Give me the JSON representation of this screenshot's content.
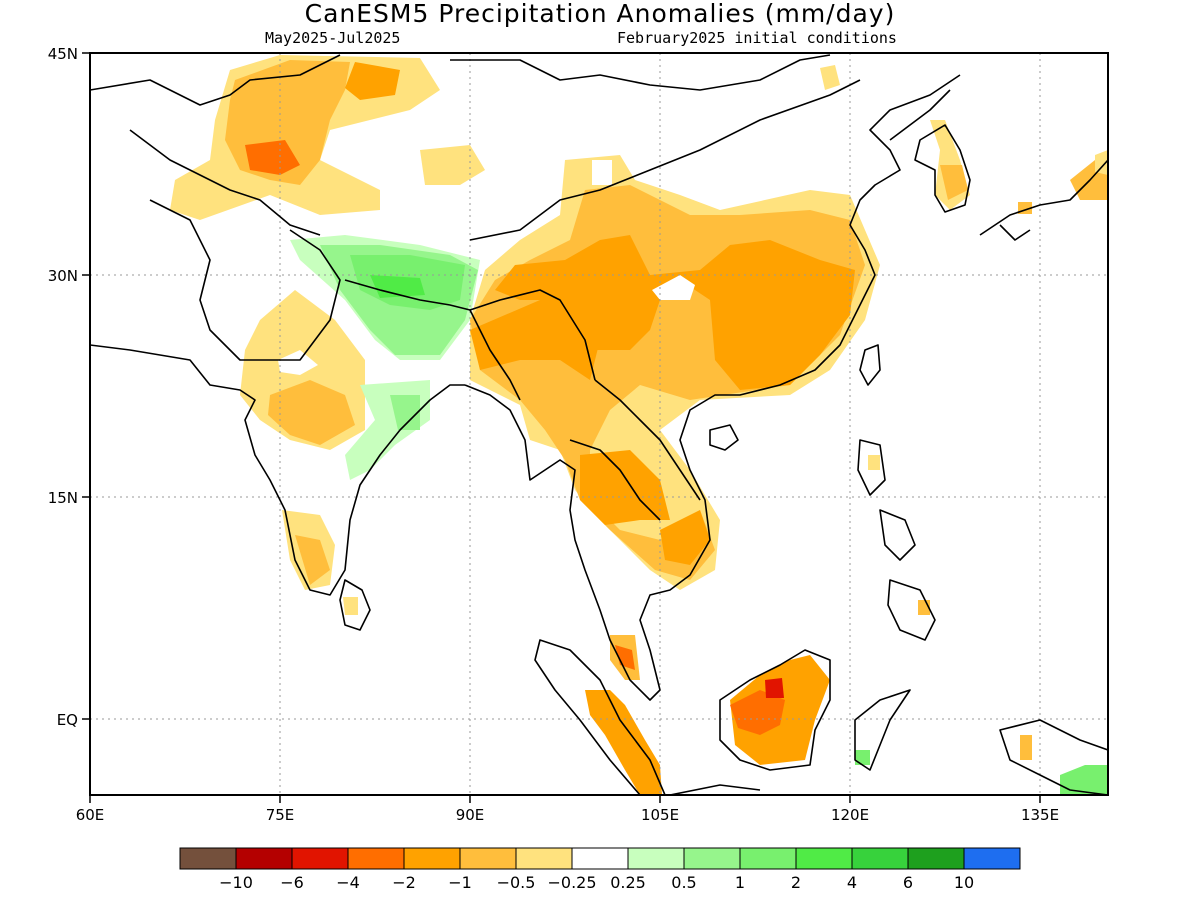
{
  "title": "CanESM5 Precipitation Anomalies (mm/day)",
  "period": "May2025-Jul2025",
  "init": "February2025 initial conditions",
  "map": {
    "lon_range": [
      60,
      140
    ],
    "lat_range": [
      -5,
      45
    ],
    "lon_ticks": [
      "60E",
      "75E",
      "90E",
      "105E",
      "120E",
      "135E"
    ],
    "lat_ticks": [
      "45N",
      "30N",
      "15N",
      "EQ"
    ],
    "grid": "dotted",
    "regions": [
      {
        "name": "tibet-china-dry",
        "color": "#ffe27e"
      },
      {
        "name": "china-moderate-dry",
        "color": "#ffbe3c"
      },
      {
        "name": "china-strong-dry",
        "color": "#ffa200"
      },
      {
        "name": "himalaya-wet",
        "color": "#7bef6d"
      },
      {
        "name": "bay-bengal-wet",
        "color": "#b4fab1"
      },
      {
        "name": "central-asia-dry",
        "color": "#ffbe3c"
      },
      {
        "name": "borneo-dry",
        "color": "#ff6e00"
      }
    ]
  },
  "colorbar": {
    "colors": [
      "#74503c",
      "#b40000",
      "#e11400",
      "#ff6e00",
      "#ffa200",
      "#ffbe3c",
      "#ffe27e",
      "#ffffff",
      "#c8ffbe",
      "#96f58c",
      "#78f06e",
      "#50eb46",
      "#37d23c",
      "#1ea01e",
      "#1e6ef0"
    ],
    "labels": [
      "-10",
      "-6",
      "-4",
      "-2",
      "-1",
      "-0.5",
      "-0.25",
      "0.25",
      "0.5",
      "1",
      "2",
      "4",
      "6",
      "10"
    ]
  }
}
